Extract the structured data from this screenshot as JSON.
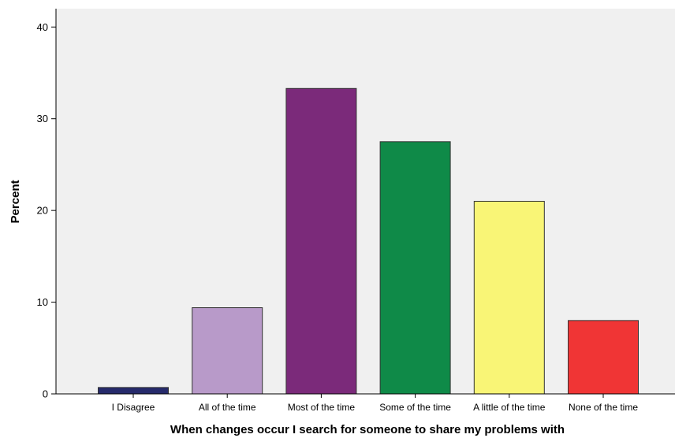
{
  "chart_data": {
    "type": "bar",
    "xlabel": "When changes occur I search for someone to share my problems with",
    "ylabel": "Percent",
    "ylim": [
      0,
      42
    ],
    "yticks": [
      0,
      10,
      20,
      30,
      40
    ],
    "grid": false,
    "categories": [
      "I Disagree",
      "All of the time",
      "Most of the time",
      "Some of the time",
      "A little of the time",
      "None of the time"
    ],
    "values": [
      0.7,
      9.4,
      33.3,
      27.5,
      21.0,
      8.0
    ],
    "colors": [
      "#262a6b",
      "#b89ac9",
      "#7b2a7a",
      "#0f8a48",
      "#f9f576",
      "#f03535"
    ],
    "plot_background": "#f0f0f0"
  }
}
